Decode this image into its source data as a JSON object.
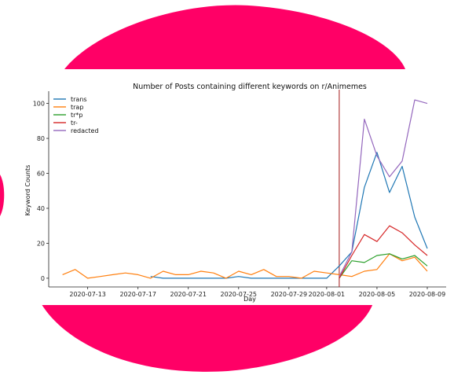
{
  "chart_data": {
    "type": "line",
    "title": "Number of Posts containing different keywords on r/Animemes",
    "xlabel": "Day",
    "ylabel": "Keyword Counts",
    "ylim": [
      -5,
      107
    ],
    "yticks": [
      0,
      20,
      40,
      60,
      80,
      100
    ],
    "xticks": [
      "2020-07-13",
      "2020-07-17",
      "2020-07-21",
      "2020-07-25",
      "2020-07-29",
      "2020-08-01",
      "2020-08-05",
      "2020-08-09"
    ],
    "x_start": "2020-07-11",
    "x_end": "2020-08-10",
    "xlim_days": [
      -1.1,
      30.5
    ],
    "xtick_days": [
      2,
      6,
      10,
      14,
      18,
      21,
      25,
      29
    ],
    "marker_line_day": 22,
    "marker_line_color": "#a51c1c",
    "legend_position": "top-left",
    "series": [
      {
        "name": "trans",
        "color": "#1f77b4",
        "days": [
          7,
          8,
          9,
          10,
          11,
          12,
          13,
          14,
          15,
          16,
          17,
          18,
          19,
          20,
          21,
          22,
          23,
          24,
          25,
          26,
          27,
          28,
          29,
          30
        ],
        "values": [
          1,
          0,
          0,
          0,
          0,
          0,
          0,
          1,
          0,
          0,
          0,
          0,
          0,
          0,
          0,
          7,
          15,
          52,
          72,
          49,
          64,
          35,
          17,
          null
        ]
      },
      {
        "name": "trap",
        "color": "#ff7f0e",
        "days": [
          0,
          1,
          2,
          3,
          4,
          5,
          6,
          7,
          8,
          9,
          10,
          11,
          12,
          13,
          14,
          15,
          16,
          17,
          18,
          19,
          20,
          21,
          22,
          23,
          24,
          25,
          26,
          27,
          28,
          29
        ],
        "values": [
          2,
          5,
          0,
          1,
          2,
          3,
          2,
          0,
          4,
          2,
          2,
          4,
          3,
          0,
          4,
          2,
          5,
          1,
          1,
          0,
          4,
          3,
          2,
          1,
          4,
          5,
          14,
          10,
          12,
          4
        ]
      },
      {
        "name": "tr*p",
        "color": "#2ca02c",
        "days": [
          22,
          23,
          24,
          25,
          26,
          27,
          28,
          29,
          30
        ],
        "values": [
          0,
          10,
          9,
          13,
          14,
          11,
          13,
          7,
          null
        ]
      },
      {
        "name": "tr-",
        "color": "#d62728",
        "days": [
          22,
          23,
          24,
          25,
          26,
          27,
          28,
          29
        ],
        "values": [
          0,
          13,
          25,
          21,
          30,
          26,
          19,
          13
        ]
      },
      {
        "name": "redacted",
        "color": "#9467bd",
        "days": [
          22,
          23,
          24,
          25,
          26,
          27,
          28,
          29
        ],
        "values": [
          1,
          15,
          91,
          70,
          58,
          67,
          102,
          100
        ]
      }
    ]
  },
  "decor": {
    "blob_color": "#ff0066"
  }
}
